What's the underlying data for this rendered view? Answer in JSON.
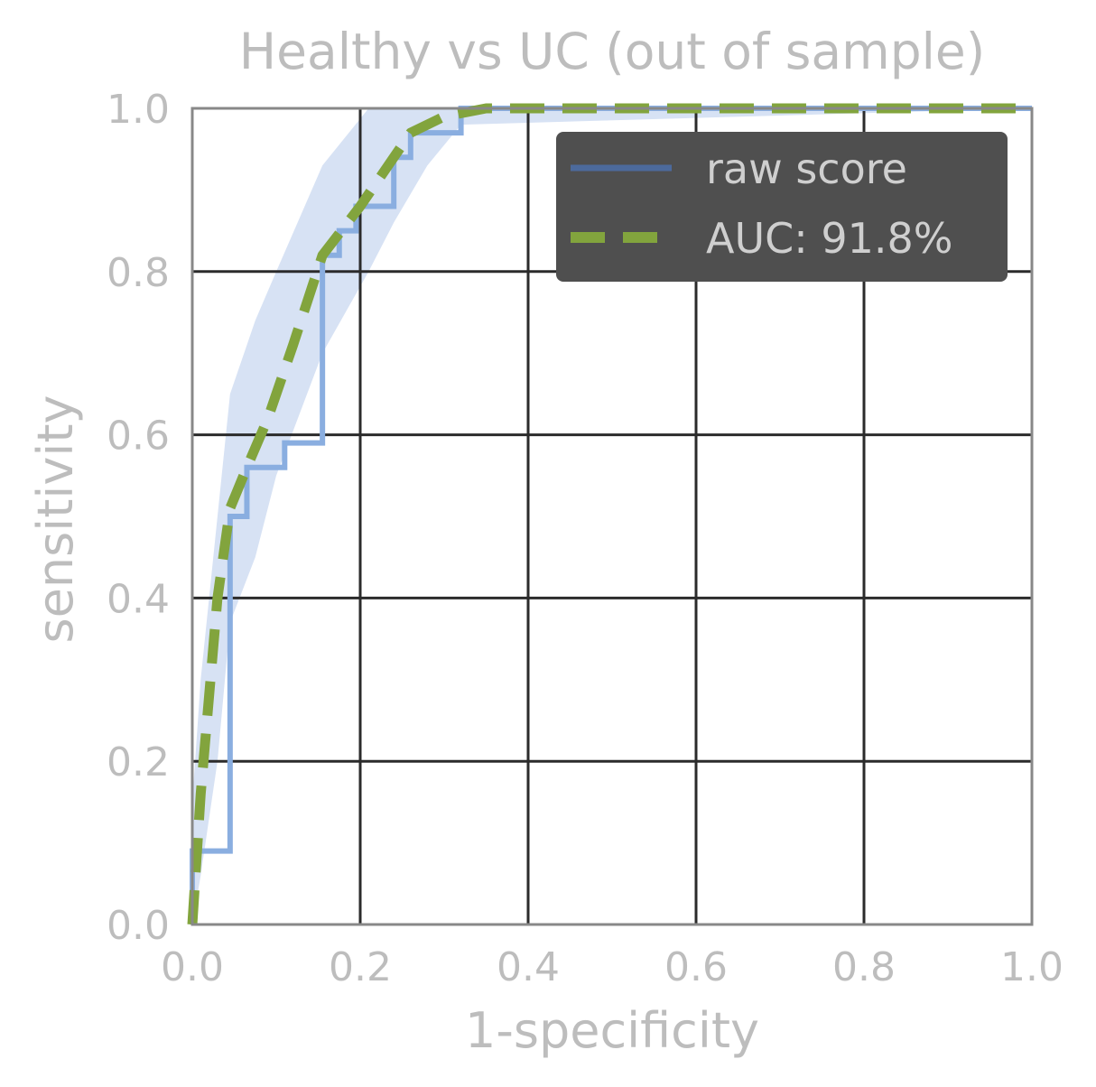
{
  "chart_data": {
    "type": "line",
    "title": "Healthy vs UC (out of sample)",
    "xlabel": "1-specificity",
    "ylabel": "sensitivity",
    "xlim": [
      0,
      1
    ],
    "ylim": [
      0,
      1
    ],
    "xticks": [
      "0.0",
      "0.2",
      "0.4",
      "0.6",
      "0.8",
      "1.0"
    ],
    "yticks": [
      "0.0",
      "0.2",
      "0.4",
      "0.6",
      "0.8",
      "1.0"
    ],
    "grid": true,
    "legend_position": "top-right",
    "series": [
      {
        "name": "raw score",
        "style": "step",
        "color": "#8aaee0",
        "legend_color": "#4c6a9c",
        "x": [
          0.0,
          0.0,
          0.045,
          0.045,
          0.065,
          0.065,
          0.11,
          0.11,
          0.155,
          0.155,
          0.175,
          0.175,
          0.195,
          0.195,
          0.24,
          0.24,
          0.26,
          0.26,
          0.32,
          0.32,
          1.0
        ],
        "y": [
          0.0,
          0.09,
          0.09,
          0.5,
          0.5,
          0.56,
          0.56,
          0.59,
          0.59,
          0.82,
          0.82,
          0.85,
          0.85,
          0.88,
          0.88,
          0.94,
          0.94,
          0.97,
          0.97,
          1.0,
          1.0
        ]
      },
      {
        "name": "AUC: 91.8%",
        "style": "dashed",
        "color": "#82a43d",
        "x": [
          0.0,
          0.01,
          0.02,
          0.03,
          0.045,
          0.065,
          0.09,
          0.12,
          0.155,
          0.2,
          0.26,
          0.3,
          0.35,
          0.5,
          1.0
        ],
        "y": [
          0.0,
          0.16,
          0.28,
          0.4,
          0.51,
          0.56,
          0.62,
          0.71,
          0.82,
          0.88,
          0.97,
          0.99,
          1.0,
          1.0,
          1.0
        ]
      }
    ],
    "confidence_band": {
      "color": "#d7e2f4",
      "x": [
        0.0,
        0.01,
        0.03,
        0.045,
        0.075,
        0.1,
        0.155,
        0.21,
        0.24,
        0.28,
        0.32,
        1.0
      ],
      "upper": [
        0.15,
        0.3,
        0.5,
        0.65,
        0.74,
        0.8,
        0.93,
        1.0,
        1.0,
        1.0,
        1.0,
        1.0
      ],
      "lower": [
        0.0,
        0.06,
        0.2,
        0.37,
        0.45,
        0.55,
        0.7,
        0.8,
        0.86,
        0.93,
        0.98,
        1.0
      ]
    }
  }
}
